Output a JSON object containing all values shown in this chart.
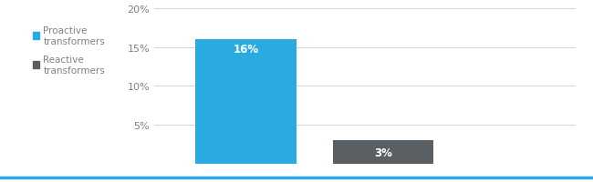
{
  "categories": [
    "Proactive transformers",
    "Reactive transformers"
  ],
  "values": [
    16,
    3
  ],
  "bar_colors": [
    "#29ABE2",
    "#5a5f63"
  ],
  "bar_labels": [
    "16%",
    "3%"
  ],
  "legend_labels": [
    "Proactive\ntransformers",
    "Reactive\ntransformers"
  ],
  "legend_colors": [
    "#29ABE2",
    "#5a5f63"
  ],
  "ylim": [
    0,
    20
  ],
  "yticks": [
    0,
    5,
    10,
    15,
    20
  ],
  "ytick_labels": [
    "",
    "5%",
    "10%",
    "15%",
    "20%"
  ],
  "background_color": "#ffffff",
  "grid_color": "#d5d5d5",
  "bar_label_color": "#ffffff",
  "bar_label_fontsize": 8.5,
  "legend_fontsize": 7.5,
  "tick_label_color": "#808080",
  "tick_fontsize": 8,
  "bottom_line_color": "#29ABE2",
  "bar_width": 0.55,
  "x_positions": [
    0,
    0.75
  ]
}
